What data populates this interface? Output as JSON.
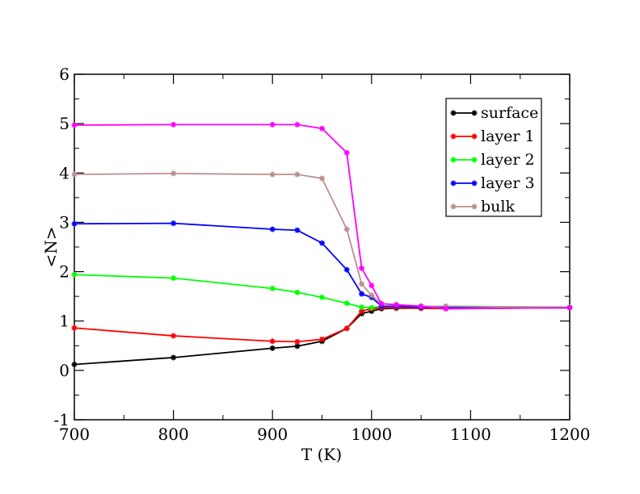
{
  "chart_data": {
    "type": "line",
    "title": "",
    "xlabel": "T (K)",
    "ylabel": "<N>",
    "xlim": [
      700,
      1200
    ],
    "ylim": [
      -1,
      6
    ],
    "xticks": [
      700,
      800,
      900,
      1000,
      1100,
      1200
    ],
    "yticks": [
      -1,
      0,
      1,
      2,
      3,
      4,
      5,
      6
    ],
    "grid": false,
    "legend_position": "top-right",
    "series": [
      {
        "name": "surface",
        "color": "#000000",
        "x": [
          700,
          800,
          900,
          925,
          950,
          975,
          990,
          1000,
          1010,
          1025,
          1050,
          1075,
          1200
        ],
        "y": [
          0.12,
          0.26,
          0.45,
          0.49,
          0.59,
          0.85,
          1.15,
          1.2,
          1.25,
          1.26,
          1.26,
          1.27,
          1.27
        ]
      },
      {
        "name": "layer 1",
        "color": "#ff0000",
        "x": [
          700,
          800,
          900,
          925,
          950,
          975,
          990,
          1000,
          1010,
          1025,
          1050,
          1075,
          1200
        ],
        "y": [
          0.86,
          0.7,
          0.59,
          0.58,
          0.63,
          0.85,
          1.2,
          1.25,
          1.27,
          1.27,
          1.26,
          1.25,
          1.27
        ]
      },
      {
        "name": "layer 2",
        "color": "#00ff00",
        "x": [
          700,
          800,
          900,
          925,
          950,
          975,
          990,
          1000,
          1010,
          1025,
          1050,
          1075,
          1200
        ],
        "y": [
          1.94,
          1.87,
          1.66,
          1.58,
          1.48,
          1.36,
          1.28,
          1.27,
          1.3,
          1.3,
          1.3,
          1.3,
          1.28
        ]
      },
      {
        "name": "layer 3",
        "color": "#0000ff",
        "x": [
          700,
          800,
          900,
          925,
          950,
          975,
          990,
          1000,
          1010,
          1025,
          1050,
          1075,
          1200
        ],
        "y": [
          2.97,
          2.98,
          2.86,
          2.84,
          2.58,
          2.04,
          1.55,
          1.48,
          1.3,
          1.3,
          1.28,
          1.27,
          1.27
        ]
      },
      {
        "name": "bulk",
        "color": "#bc8f8f",
        "x": [
          700,
          800,
          900,
          925,
          950,
          975,
          990,
          1000,
          1010,
          1025,
          1050,
          1075,
          1200
        ],
        "y": [
          3.97,
          3.99,
          3.97,
          3.97,
          3.89,
          2.86,
          1.75,
          1.52,
          1.35,
          1.33,
          1.3,
          1.3,
          1.27
        ]
      },
      {
        "name": "",
        "color": "#ff00ff",
        "x": [
          700,
          800,
          900,
          925,
          950,
          975,
          990,
          1000,
          1010,
          1025,
          1050,
          1075,
          1200
        ],
        "y": [
          4.97,
          4.98,
          4.98,
          4.98,
          4.9,
          4.41,
          2.07,
          1.72,
          1.35,
          1.33,
          1.3,
          1.25,
          1.27
        ]
      }
    ]
  }
}
